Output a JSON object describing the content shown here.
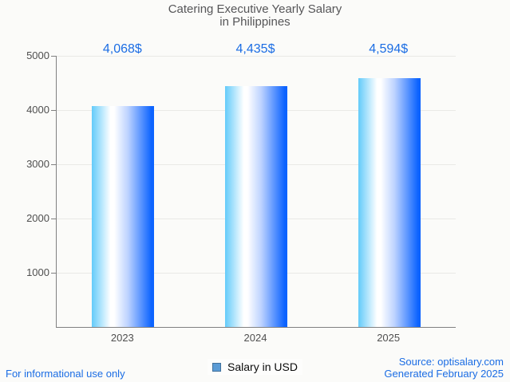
{
  "title": {
    "line1": "Catering Executive Yearly Salary",
    "line2": "in Philippines"
  },
  "chart_data": {
    "type": "bar",
    "title": "Catering Executive Yearly Salary in Philippines",
    "categories": [
      "2023",
      "2024",
      "2025"
    ],
    "values": [
      4068,
      4435,
      4594
    ],
    "value_labels": [
      "4,068$",
      "4,435$",
      "4,594$"
    ],
    "series": [
      {
        "name": "Salary in USD",
        "values": [
          4068,
          4435,
          4594
        ]
      }
    ],
    "xlabel": "",
    "ylabel": "",
    "ylim": [
      0,
      5000
    ],
    "yticks": [
      1000,
      2000,
      3000,
      4000,
      5000
    ],
    "grid": true,
    "legend_position": "bottom-center"
  },
  "legend": {
    "label": "Salary in USD"
  },
  "footer": {
    "left": "For informational use only",
    "source": "Source: optisalary.com",
    "generated": "Generated February 2025"
  },
  "colors": {
    "accent_blue": "#1b6de4",
    "title_gray": "#565658",
    "axis_gray": "#808080",
    "grid_gray": "#e9e9e6",
    "tick_label_gray": "#4f4f4f",
    "bar_gradient_left": "#63cbfa",
    "bar_gradient_mid": "#ffffff",
    "bar_gradient_soft": "#bdd3ff",
    "bar_gradient_right": "#0c63ff",
    "legend_marker_fill": "#5b9bd5",
    "legend_marker_border": "#41719c",
    "background": "#fbfbf9"
  }
}
